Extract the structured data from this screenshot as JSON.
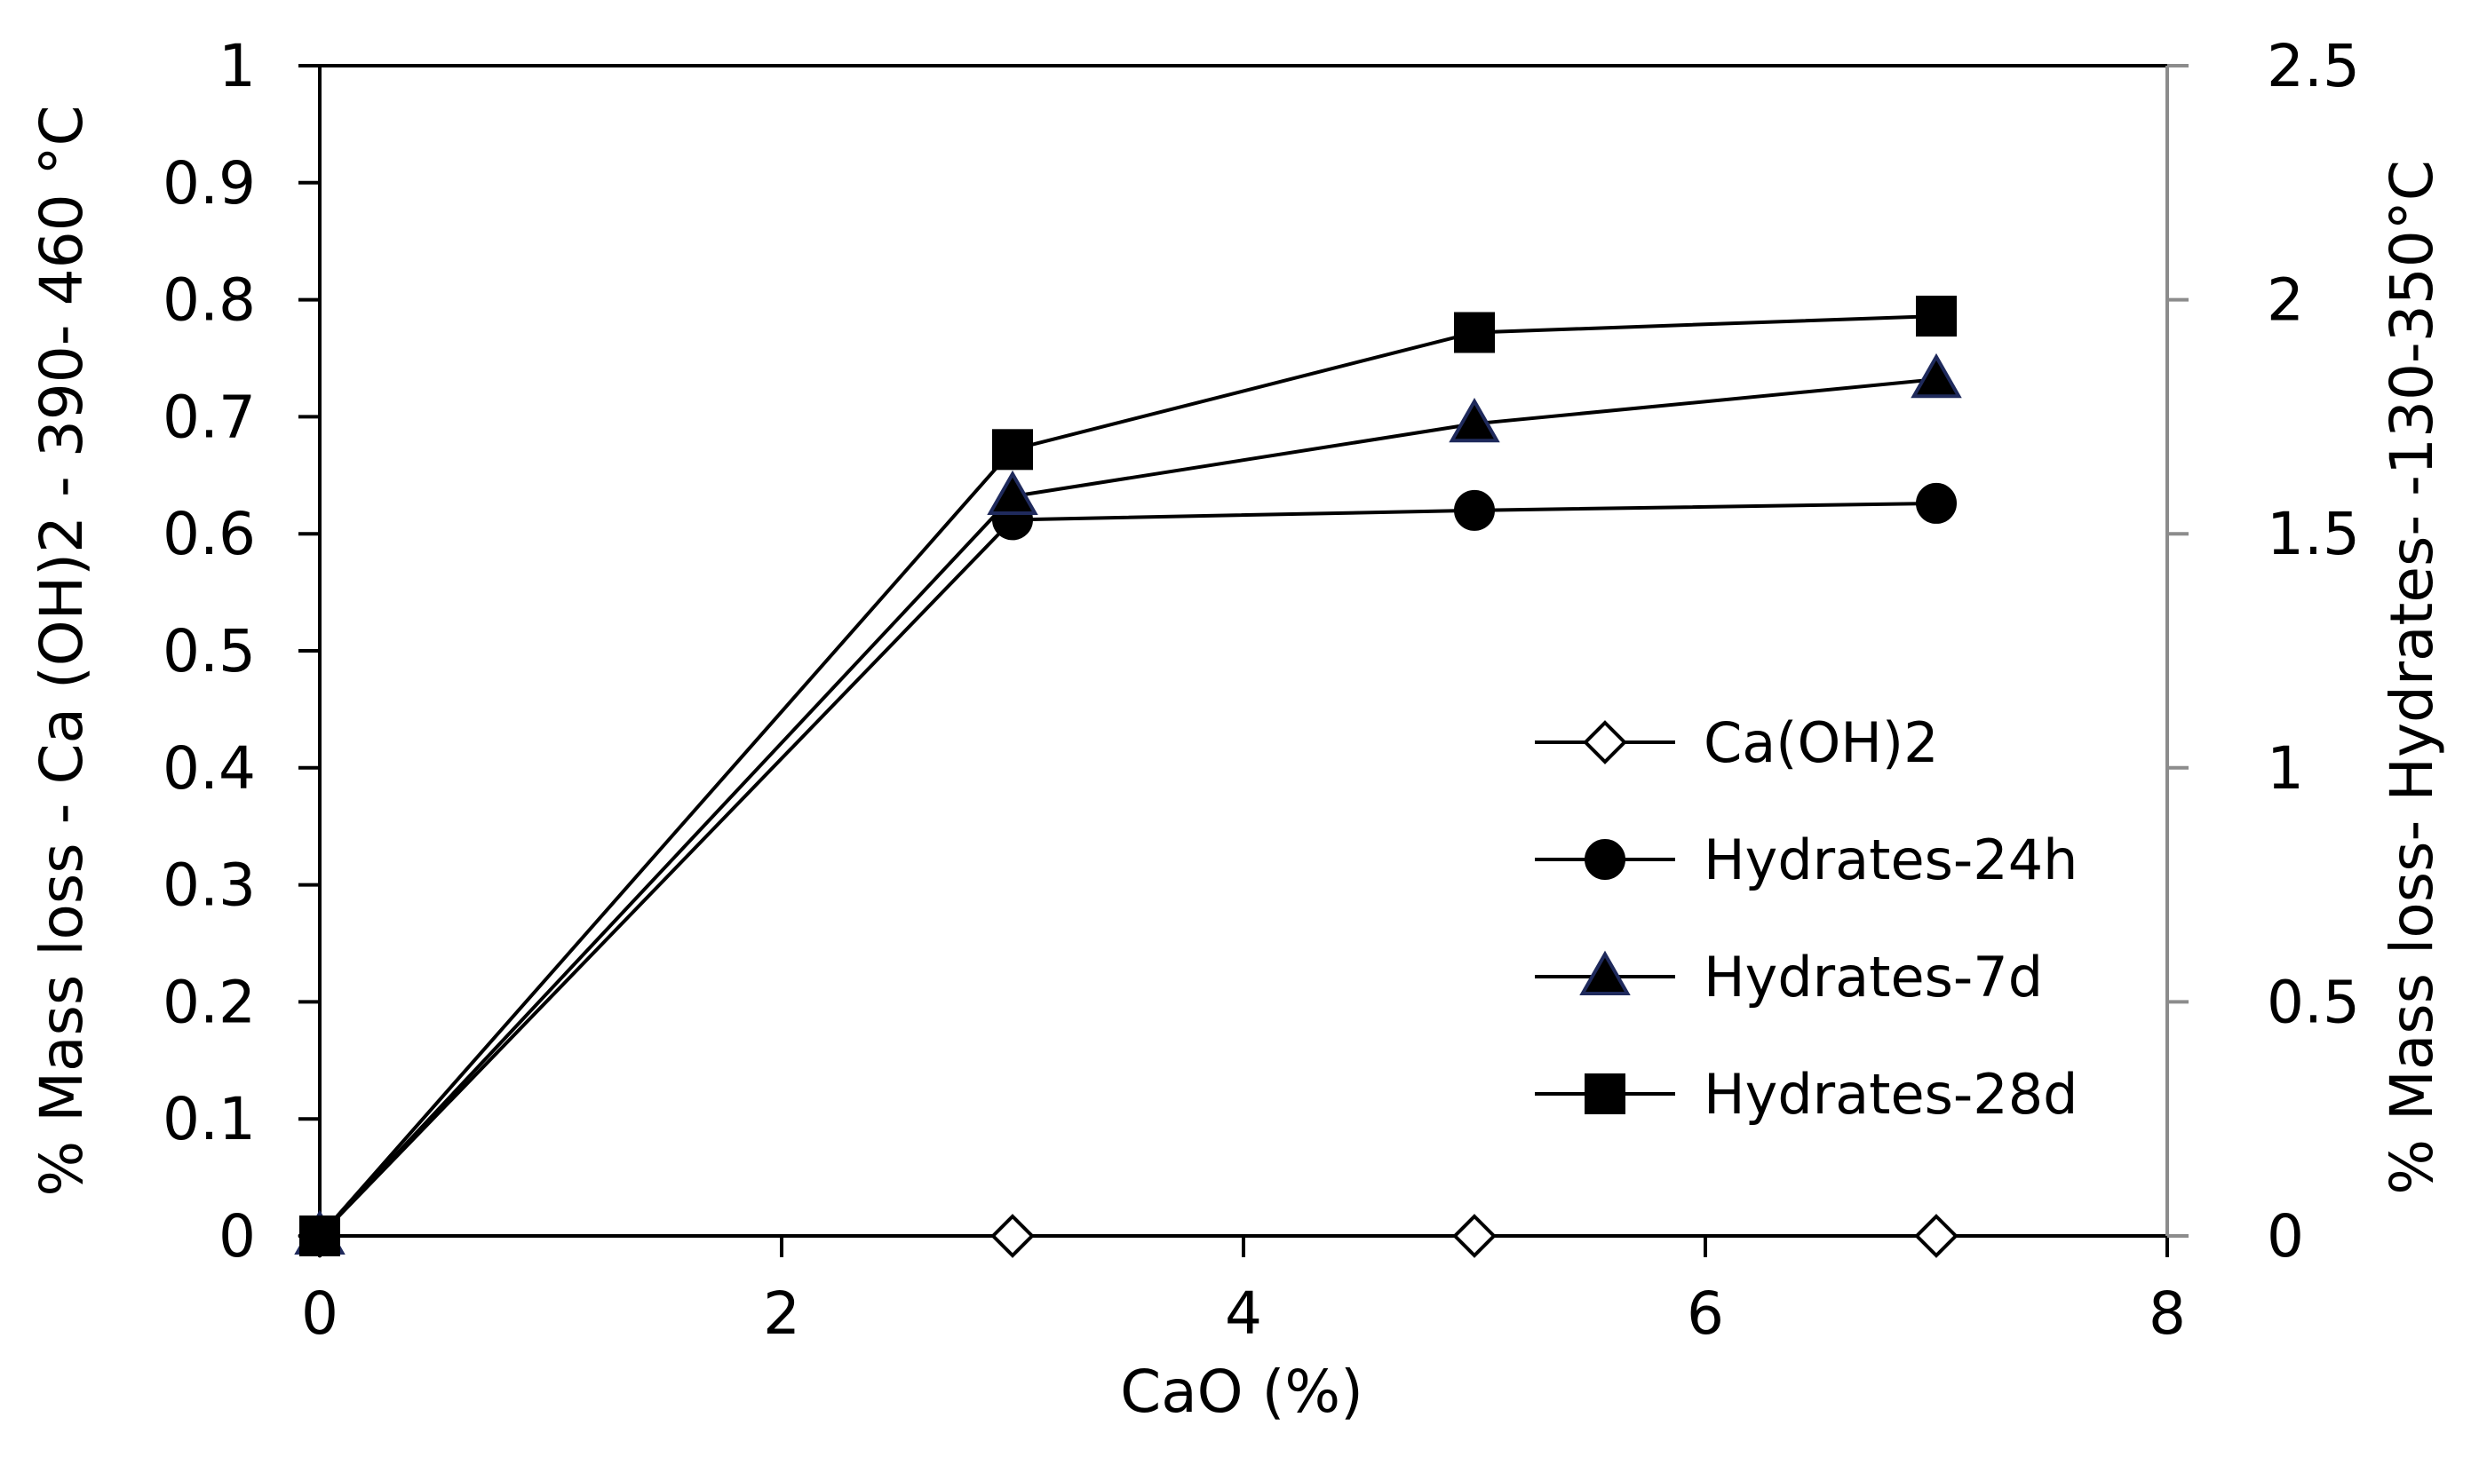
{
  "chart_data": {
    "type": "line",
    "xlabel": "CaO (%)",
    "ylabel_left": "% Mass loss - Ca (OH)2 - 390- 460 °C",
    "ylabel_right": "% Mass loss- Hydrates- -130-350°C",
    "xlim": [
      0,
      8
    ],
    "ylim_left": [
      0,
      1
    ],
    "ylim_right": [
      0,
      2.5
    ],
    "x_ticks": [
      "0",
      "2",
      "4",
      "6",
      "8"
    ],
    "y_left_ticks": [
      "0",
      "0.1",
      "0.2",
      "0.3",
      "0.4",
      "0.5",
      "0.6",
      "0.7",
      "0.8",
      "0.9",
      "1"
    ],
    "y_right_ticks": [
      "0",
      "0.5",
      "1",
      "1.5",
      "2",
      "2.5"
    ],
    "grid": false,
    "legend_position": "center-right",
    "series": [
      {
        "name": "Ca(OH)2",
        "axis": "left",
        "marker": "diamond-open",
        "color": "#000000",
        "x": [
          0,
          3,
          5,
          7
        ],
        "y": [
          0,
          0,
          0,
          0
        ]
      },
      {
        "name": "Hydrates-24h",
        "axis": "right",
        "marker": "circle",
        "color": "#000000",
        "x": [
          0,
          3,
          5,
          7
        ],
        "y": [
          0,
          1.53,
          1.55,
          1.565
        ]
      },
      {
        "name": "Hydrates-7d",
        "axis": "right",
        "marker": "triangle",
        "color": "#000000",
        "edge_color": "#1f2a5c",
        "x": [
          0,
          3,
          5,
          7
        ],
        "y": [
          0,
          1.58,
          1.735,
          1.83
        ]
      },
      {
        "name": "Hydrates-28d",
        "axis": "right",
        "marker": "square",
        "color": "#000000",
        "x": [
          0,
          3,
          5,
          7
        ],
        "y": [
          0,
          1.68,
          1.93,
          1.965
        ]
      }
    ]
  }
}
